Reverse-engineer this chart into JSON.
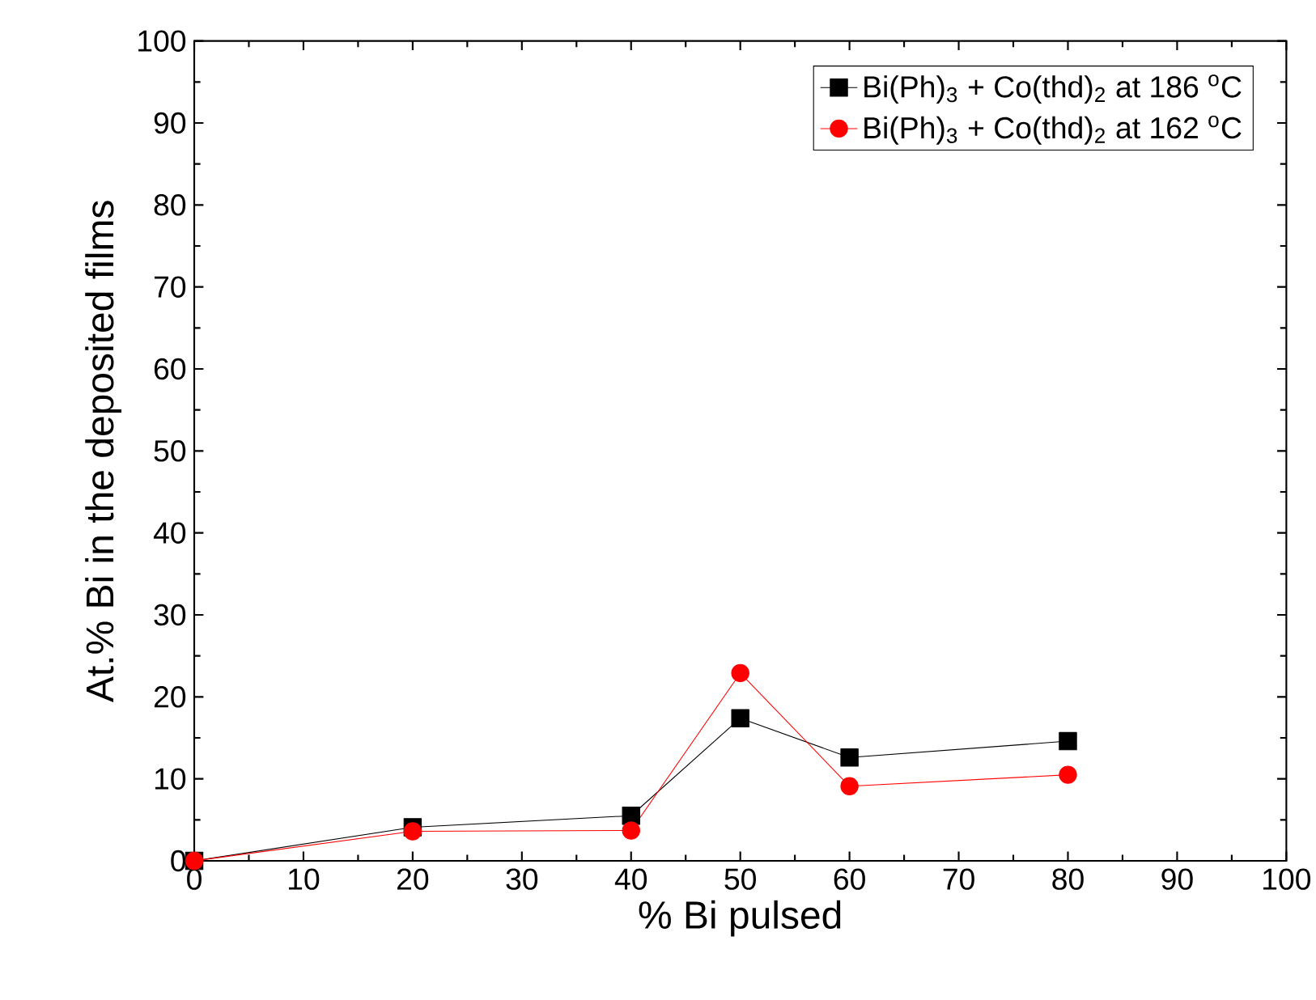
{
  "chart_data": {
    "type": "line",
    "xlabel": "% Bi pulsed",
    "ylabel": "At.% Bi in the deposited films",
    "x": [
      0,
      20,
      40,
      50,
      60,
      80
    ],
    "series": [
      {
        "name": "Bi(Ph)$_{3}$ + Co(thd)$_{2}$ at 186 $^{o}$C",
        "color": "#000000",
        "marker": "square",
        "values": [
          0,
          4.1,
          5.5,
          17.4,
          12.6,
          14.6
        ]
      },
      {
        "name": "Bi(Ph)$_{3}$ + Co(thd)$_{2}$ at 162 $^{o}$C",
        "color": "#ff0000",
        "marker": "circle",
        "values": [
          0,
          3.6,
          3.7,
          22.9,
          9.1,
          10.5
        ]
      }
    ],
    "xlim": [
      0,
      100
    ],
    "ylim": [
      0,
      100
    ],
    "xticks": [
      0,
      10,
      20,
      30,
      40,
      50,
      60,
      70,
      80,
      90,
      100
    ],
    "yticks": [
      0,
      10,
      20,
      30,
      40,
      50,
      60,
      70,
      80,
      90,
      100
    ],
    "grid": false,
    "legend": "top right",
    "line_style": "solid"
  }
}
